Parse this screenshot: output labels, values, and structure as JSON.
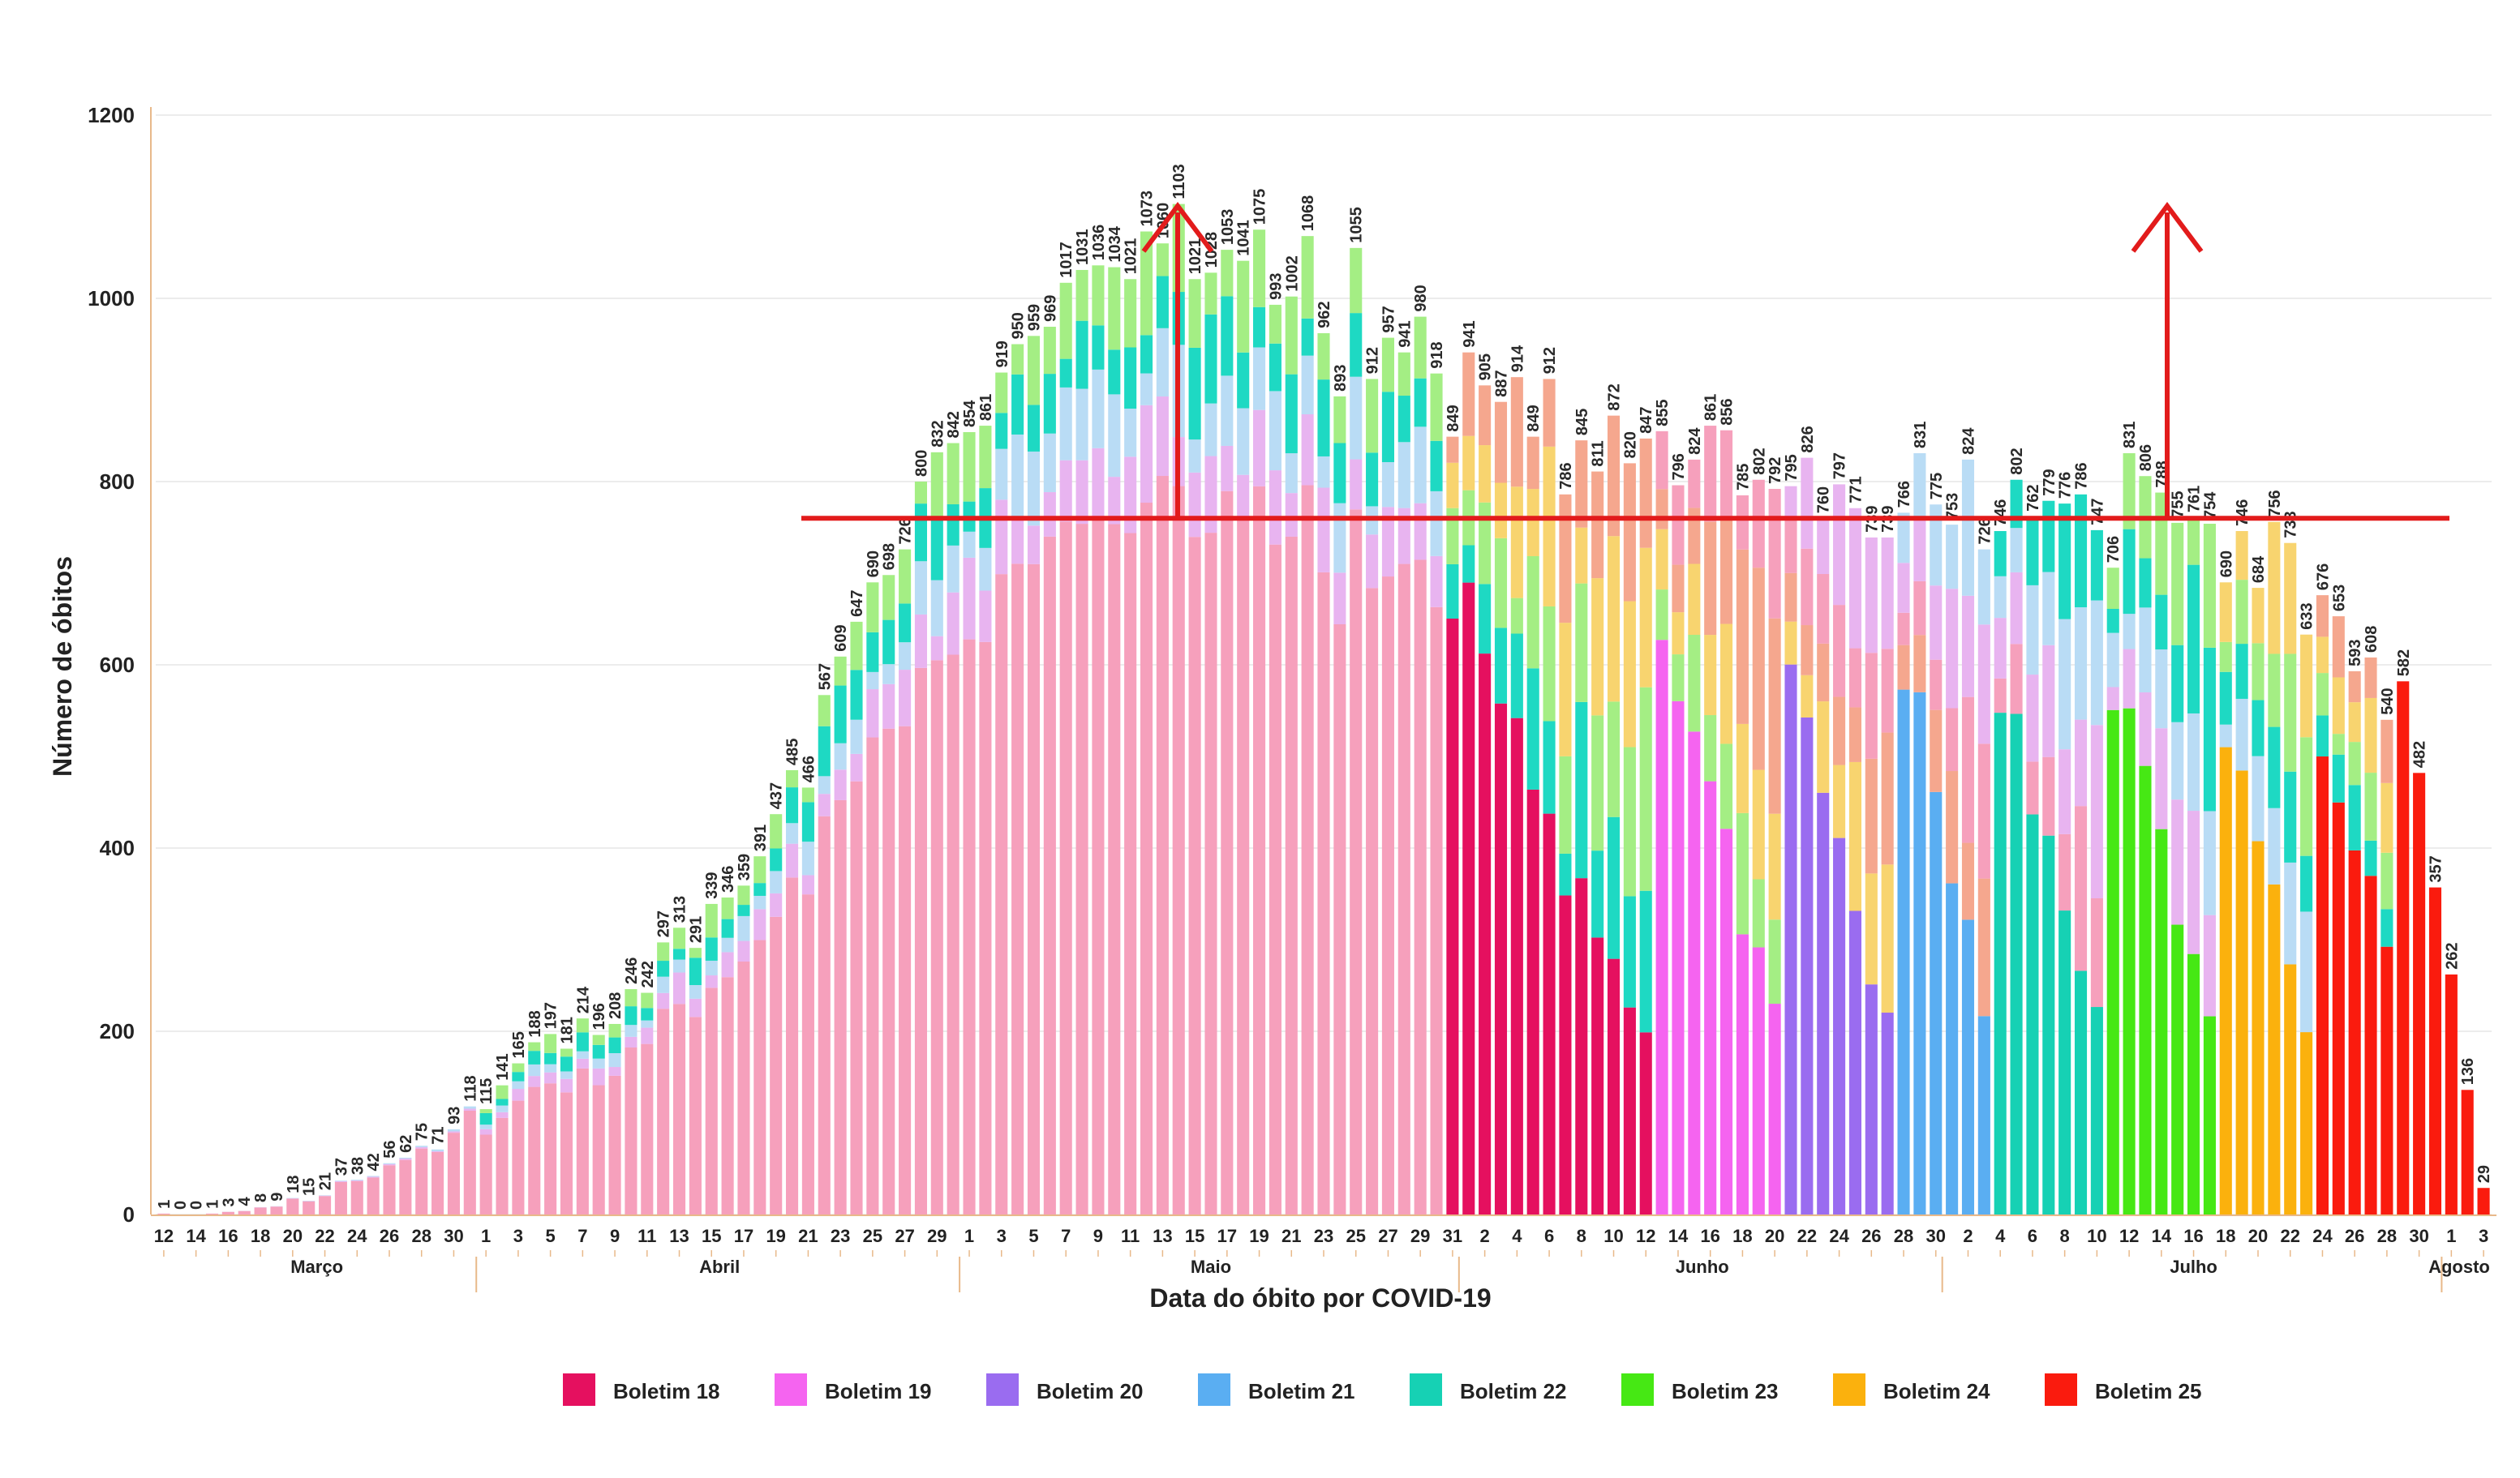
{
  "chart_data": {
    "type": "bar",
    "title": "",
    "xlabel": "Data do óbito por COVID-19",
    "ylabel": "Número de óbitos",
    "ylim": [
      0,
      1200
    ],
    "yticks": [
      0,
      200,
      400,
      600,
      800,
      1000,
      1200
    ],
    "grid": true,
    "legend_position": "bottom",
    "day_labels": [
      "12",
      "14",
      "16",
      "18",
      "20",
      "22",
      "24",
      "26",
      "28",
      "30",
      "1",
      "3",
      "5",
      "7",
      "9",
      "11",
      "13",
      "15",
      "17",
      "19",
      "21",
      "23",
      "25",
      "27",
      "29",
      "1",
      "3",
      "5",
      "7",
      "9",
      "11",
      "13",
      "15",
      "17",
      "19",
      "21",
      "23",
      "25",
      "27",
      "29",
      "31",
      "2",
      "4",
      "6",
      "8",
      "10",
      "12",
      "14",
      "16",
      "18",
      "20",
      "22",
      "24",
      "26",
      "28",
      "30",
      "2",
      "4",
      "6",
      "8",
      "10",
      "12",
      "14",
      "16",
      "18",
      "20",
      "22",
      "24",
      "26",
      "28",
      "30",
      "1",
      "3"
    ],
    "months": [
      {
        "name": "Março",
        "first_day": 0
      },
      {
        "name": "Abril",
        "first_day": 20
      },
      {
        "name": "Maio",
        "first_day": 50
      },
      {
        "name": "Junho",
        "first_day": 81
      },
      {
        "name": "Julho",
        "first_day": 111
      },
      {
        "name": "Agosto",
        "first_day": 142
      }
    ],
    "totals": [
      1,
      0,
      0,
      1,
      3,
      4,
      8,
      9,
      18,
      15,
      21,
      37,
      38,
      42,
      56,
      62,
      75,
      71,
      93,
      118,
      115,
      141,
      165,
      188,
      197,
      181,
      214,
      196,
      208,
      246,
      242,
      297,
      313,
      291,
      339,
      346,
      359,
      391,
      437,
      485,
      466,
      567,
      609,
      647,
      690,
      698,
      726,
      800,
      832,
      842,
      854,
      861,
      919,
      950,
      959,
      969,
      1017,
      1031,
      1036,
      1034,
      1021,
      1073,
      1060,
      1103,
      1021,
      1028,
      1053,
      1041,
      1075,
      993,
      1002,
      1068,
      962,
      893,
      1055,
      912,
      957,
      941,
      980,
      918,
      849,
      941,
      905,
      887,
      914,
      849,
      912,
      786,
      845,
      811,
      872,
      820,
      847,
      855,
      796,
      824,
      861,
      856,
      785,
      802,
      792,
      795,
      826,
      760,
      797,
      771,
      739,
      739,
      766,
      831,
      775,
      753,
      824,
      726,
      746,
      802,
      762,
      779,
      776,
      786,
      747,
      706,
      831,
      806,
      788,
      755,
      761,
      754,
      690,
      746,
      684,
      756,
      733,
      633,
      676,
      653,
      593,
      608,
      540,
      582,
      482,
      357,
      262,
      136,
      29
    ],
    "reference_line": 760,
    "series": [
      {
        "name": "Boletim 18",
        "color": "#e5105f"
      },
      {
        "name": "Boletim 19",
        "color": "#f564f0"
      },
      {
        "name": "Boletim 20",
        "color": "#9a6cf0"
      },
      {
        "name": "Boletim 21",
        "color": "#5aaef2"
      },
      {
        "name": "Boletim 22",
        "color": "#16d1b4"
      },
      {
        "name": "Boletim 23",
        "color": "#46e814"
      },
      {
        "name": "Boletim 24",
        "color": "#fbb10d"
      },
      {
        "name": "Boletim 25",
        "color": "#fa1b0e"
      }
    ],
    "earlier_layer_colors": [
      "#f6a0bc",
      "#e8b4f0",
      "#b9dcf5",
      "#1ed9c3",
      "#a4ee84",
      "#f8d46f",
      "#f5a78e"
    ],
    "accent_color": "#e21b1b"
  }
}
